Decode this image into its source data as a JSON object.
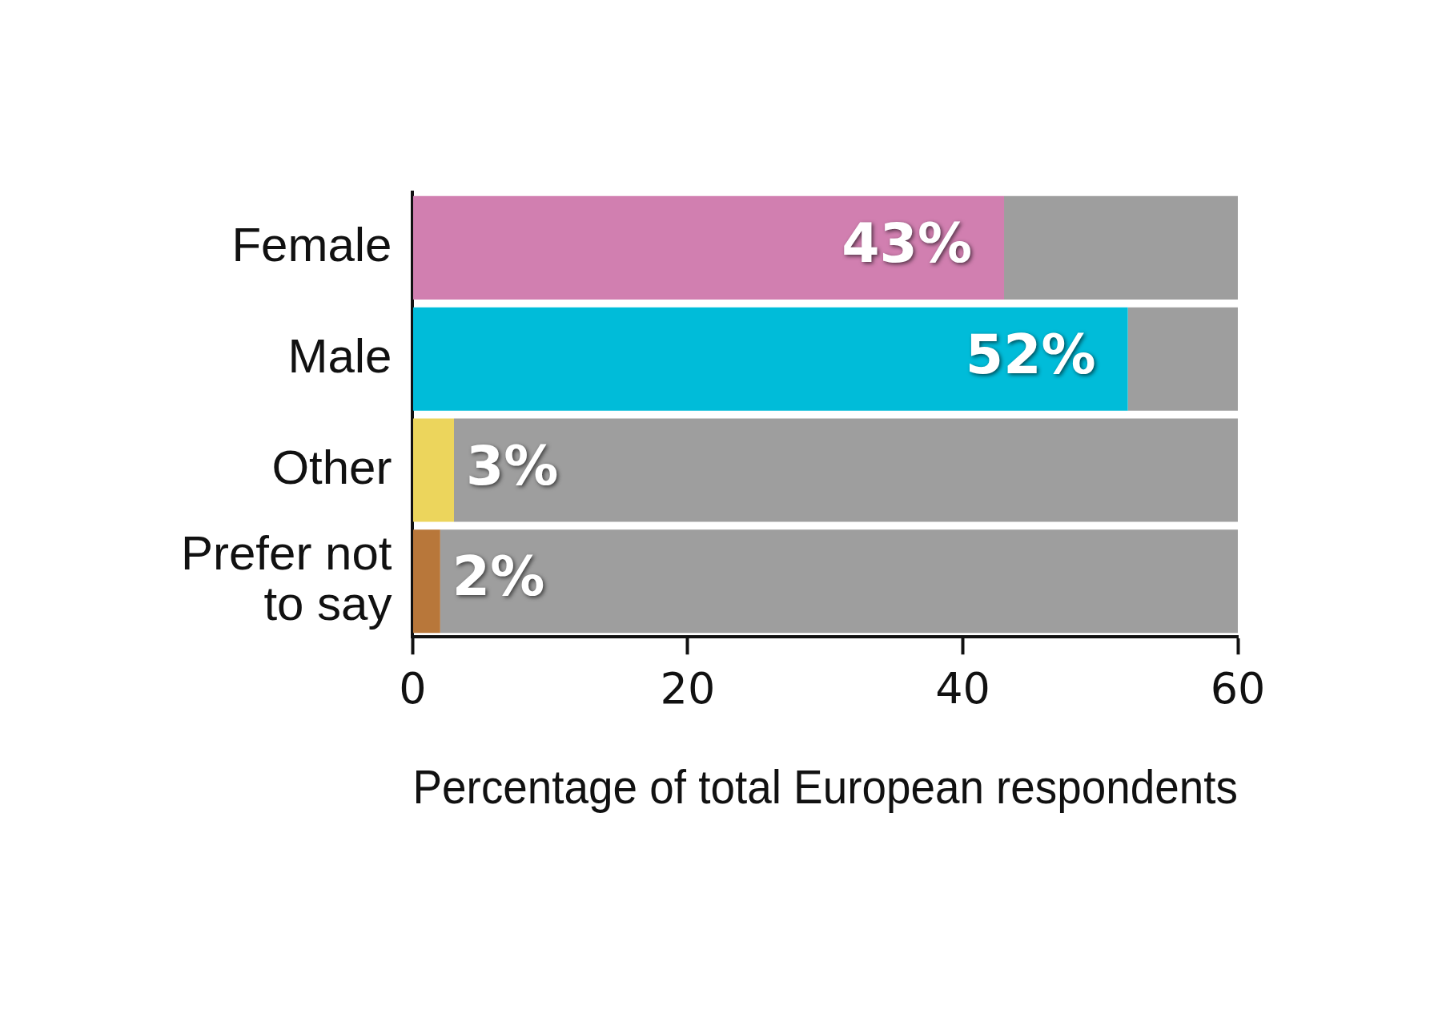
{
  "chart_data": {
    "type": "bar",
    "orientation": "horizontal",
    "stacked": true,
    "xlabel": "Percentage of total European respondents",
    "categories": [
      "Female",
      "Male",
      "Other",
      "Prefer not to say"
    ],
    "series": [
      {
        "colors": [
          "#d17fb0",
          "#00bcd9",
          "#ecd55c",
          "#b8773a"
        ],
        "values": [
          43,
          52,
          3,
          2
        ],
        "value_labels": [
          "43%",
          "52%",
          "3%",
          "2%"
        ]
      },
      {
        "color": "#9e9e9e",
        "values": [
          17,
          8,
          57,
          58
        ]
      }
    ],
    "xlim": [
      0,
      60
    ],
    "xticks": [
      0,
      20,
      40,
      60
    ],
    "grid": false,
    "legend": false
  }
}
